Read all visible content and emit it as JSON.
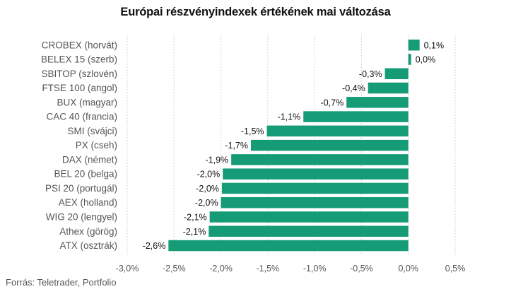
{
  "chart_data": {
    "type": "bar",
    "orientation": "horizontal",
    "title": "Európai részvényindexek értékének mai változása",
    "categories": [
      "CROBEX (horvát)",
      "BELEX 15 (szerb)",
      "SBITOP (szlovén)",
      "FTSE 100 (angol)",
      "BUX (magyar)",
      "CAC 40 (francia)",
      "SMI (svájci)",
      "PX (cseh)",
      "DAX (német)",
      "BEL 20 (belga)",
      "PSI 20 (portugál)",
      "AEX (holland)",
      "WIG 20 (lengyel)",
      "Athex (görög)",
      "ATX (osztrák)"
    ],
    "values": [
      0.1,
      0.0,
      -0.3,
      -0.4,
      -0.7,
      -1.1,
      -1.5,
      -1.7,
      -1.9,
      -2.0,
      -2.0,
      -2.0,
      -2.1,
      -2.1,
      -2.6
    ],
    "bar_values": [
      0.12,
      0.03,
      -0.25,
      -0.43,
      -0.66,
      -1.12,
      -1.51,
      -1.68,
      -1.89,
      -1.98,
      -1.99,
      -2.0,
      -2.12,
      -2.13,
      -2.56
    ],
    "value_labels": [
      "0,1%",
      "0,0%",
      "-0,3%",
      "-0,4%",
      "-0,7%",
      "-1,1%",
      "-1,5%",
      "-1,7%",
      "-1,9%",
      "-2,0%",
      "-2,0%",
      "-2,0%",
      "-2,1%",
      "-2,1%",
      "-2,6%"
    ],
    "xlim": [
      -3.0,
      0.5
    ],
    "x_ticks": [
      -3.0,
      -2.5,
      -2.0,
      -1.5,
      -1.0,
      -0.5,
      0.0,
      0.5
    ],
    "x_tick_labels": [
      "-3,0%",
      "-2,5%",
      "-2,0%",
      "-1,5%",
      "-1,0%",
      "-0,5%",
      "0,0%",
      "0,5%"
    ],
    "grid": true,
    "bar_color": "#169b77",
    "xlabel": "",
    "ylabel": ""
  },
  "source": "Forrás: Teletrader, Portfolio"
}
